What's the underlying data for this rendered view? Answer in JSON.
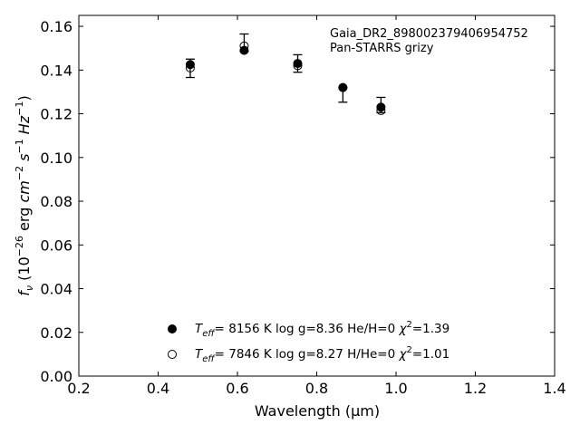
{
  "chart_data": {
    "type": "scatter",
    "title": "",
    "xlabel": "Wavelength (μm)",
    "ylabel_parts": {
      "prefix": "f",
      "sub": "ν",
      "unit_open": " (10",
      "unit_exp": "−26",
      "unit_mid": " erg ",
      "cm": "cm",
      "cm_exp": "−2",
      "s": " s",
      "s_exp": "−1",
      "hz": " Hz",
      "hz_exp": "−1",
      "close": ")"
    },
    "xlim": [
      0.2,
      1.4
    ],
    "ylim": [
      0.0,
      0.165
    ],
    "xticks": [
      0.2,
      0.4,
      0.6,
      0.8,
      1.0,
      1.2,
      1.4
    ],
    "xtick_labels": [
      "0.2",
      "0.4",
      "0.6",
      "0.8",
      "1.0",
      "1.2",
      "1.4"
    ],
    "yticks": [
      0.0,
      0.02,
      0.04,
      0.06,
      0.08,
      0.1,
      0.12,
      0.14,
      0.16
    ],
    "ytick_labels": [
      "0.00",
      "0.02",
      "0.04",
      "0.06",
      "0.08",
      "0.10",
      "0.12",
      "0.14",
      "0.16"
    ],
    "grid": false,
    "annotations": [
      "Gaia_DR2_898002379406954752",
      "Pan-STARRS grizy"
    ],
    "observed": {
      "x": [
        0.481,
        0.617,
        0.752,
        0.866,
        0.962
      ],
      "y": [
        0.1408,
        0.1525,
        0.143,
        0.1287,
        0.124
      ],
      "yerr": [
        0.0042,
        0.004,
        0.004,
        0.0034,
        0.0035
      ]
    },
    "series": [
      {
        "marker": "filled-circle",
        "x": [
          0.481,
          0.617,
          0.752,
          0.866,
          0.962
        ],
        "y": [
          0.1425,
          0.149,
          0.143,
          0.132,
          0.123
        ]
      },
      {
        "marker": "open-circle",
        "x": [
          0.481,
          0.617,
          0.752,
          0.866,
          0.962
        ],
        "y": [
          0.141,
          0.151,
          0.142,
          0.132,
          0.1215
        ]
      }
    ],
    "legend_placement": "lower-center",
    "legend": [
      {
        "marker": "filled-circle",
        "teff_symbol": "T",
        "teff_sub": "eff",
        "text": "=  8156 K  log g=8.36  He/H=0  ",
        "chi_symbol": "χ",
        "chi_exp": "2",
        "chi_value": "=1.39"
      },
      {
        "marker": "open-circle",
        "teff_symbol": "T",
        "teff_sub": "eff",
        "text": "=  7846 K  log g=8.27  H/He=0  ",
        "chi_symbol": "χ",
        "chi_exp": "2",
        "chi_value": "=1.01"
      }
    ]
  }
}
